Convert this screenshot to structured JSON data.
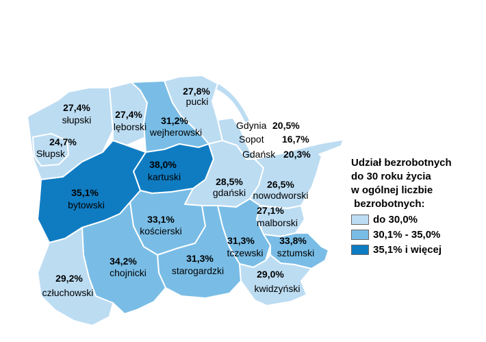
{
  "colors": {
    "low": "#bcdcf2",
    "mid": "#79bde6",
    "high": "#0f7cc2",
    "stroke": "#ffffff"
  },
  "legend": {
    "title_lines": [
      "Udział bezrobotnych",
      "do 30 roku życia",
      "w ogólnej liczbie",
      " bezrobotnych:"
    ],
    "items": [
      {
        "label": "do 30,0%",
        "class": "low"
      },
      {
        "label": "30,1% - 35,0%",
        "class": "mid"
      },
      {
        "label": "35,1% i więcej",
        "class": "high"
      }
    ]
  },
  "regions": [
    {
      "name": "pucki",
      "value": "27,8%",
      "class": "low"
    },
    {
      "name": "słupski",
      "value": "27,4%",
      "class": "low"
    },
    {
      "name": "lęborski",
      "value": "27,4%",
      "class": "low"
    },
    {
      "name": "wejherowski",
      "value": "31,2%",
      "class": "mid"
    },
    {
      "name": "Słupsk",
      "value": "24,7%",
      "class": "low"
    },
    {
      "name": "kartuski",
      "value": "38,0%",
      "class": "high"
    },
    {
      "name": "bytowski",
      "value": "35,1%",
      "class": "high"
    },
    {
      "name": "gdański",
      "value": "28,5%",
      "class": "low"
    },
    {
      "name": "nowodworski",
      "value": "26,5%",
      "class": "low"
    },
    {
      "name": "malborski",
      "value": "27,1%",
      "class": "low"
    },
    {
      "name": "kościerski",
      "value": "33,1%",
      "class": "mid"
    },
    {
      "name": "tczewski",
      "value": "31,3%",
      "class": "mid"
    },
    {
      "name": "sztumski",
      "value": "33,8%",
      "class": "mid"
    },
    {
      "name": "chojnicki",
      "value": "34,2%",
      "class": "mid"
    },
    {
      "name": "starogardzki",
      "value": "31,3%",
      "class": "mid"
    },
    {
      "name": "kwidzyński",
      "value": "29,0%",
      "class": "low"
    },
    {
      "name": "człuchowski",
      "value": "29,2%",
      "class": "low"
    }
  ],
  "cities": [
    {
      "name": "Gdynia",
      "value": "20,5%"
    },
    {
      "name": "Sopot",
      "value": "16,7%"
    },
    {
      "name": "Gdańsk",
      "value": "20,3%"
    }
  ]
}
